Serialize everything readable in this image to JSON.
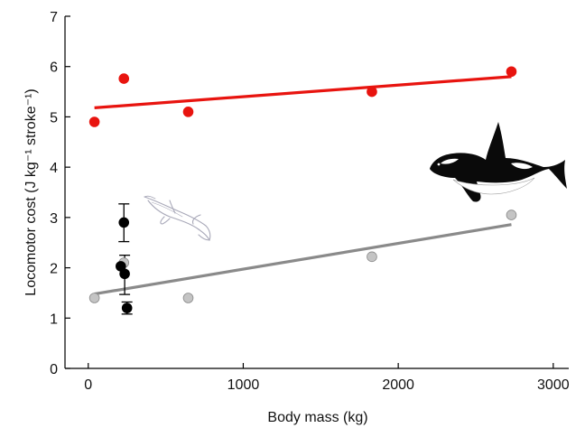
{
  "chart_data": {
    "type": "scatter",
    "xlabel": "Body mass (kg)",
    "ylabel": "Locomotor cost (J kg⁻¹ stroke⁻¹)",
    "xlim": [
      -150,
      3100
    ],
    "ylim": [
      0,
      7
    ],
    "xticks": [
      0,
      1000,
      2000,
      3000
    ],
    "xtick_labels": [
      "0",
      "1000",
      "2000",
      "3000"
    ],
    "yticks": [
      0,
      1,
      2,
      3,
      4,
      5,
      6,
      7
    ],
    "ytick_labels": [
      "0",
      "1",
      "2",
      "3",
      "4",
      "5",
      "6",
      "7"
    ],
    "grid": false,
    "series": [
      {
        "color": "#e8140f",
        "points": [
          {
            "x": 40,
            "y": 4.9
          },
          {
            "x": 230,
            "y": 5.76
          },
          {
            "x": 645,
            "y": 5.1
          },
          {
            "x": 1830,
            "y": 5.5
          },
          {
            "x": 2730,
            "y": 5.9
          }
        ],
        "fit": {
          "x": [
            40,
            2730
          ],
          "y": [
            5.18,
            5.8
          ]
        }
      },
      {
        "color": "#8a8a8a",
        "marker_fill": "#c4c4c4",
        "points": [
          {
            "x": 40,
            "y": 1.4
          },
          {
            "x": 230,
            "y": 2.1
          },
          {
            "x": 645,
            "y": 1.4
          },
          {
            "x": 1830,
            "y": 2.22
          },
          {
            "x": 2730,
            "y": 3.05
          }
        ],
        "fit": {
          "x": [
            40,
            2730
          ],
          "y": [
            1.48,
            2.86
          ]
        }
      },
      {
        "color": "#000000",
        "points": [
          {
            "x": 230,
            "y": 2.9,
            "err": [
              2.52,
              3.27
            ]
          },
          {
            "x": 210,
            "y": 2.03,
            "err": [
              2.03,
              2.03
            ]
          },
          {
            "x": 235,
            "y": 1.88,
            "err": [
              1.47,
              2.25
            ]
          },
          {
            "x": 250,
            "y": 1.2,
            "err": [
              1.08,
              1.32
            ]
          }
        ]
      }
    ]
  },
  "icons": {
    "orca": "orca-illustration",
    "dolphin": "dolphin-sketch"
  }
}
